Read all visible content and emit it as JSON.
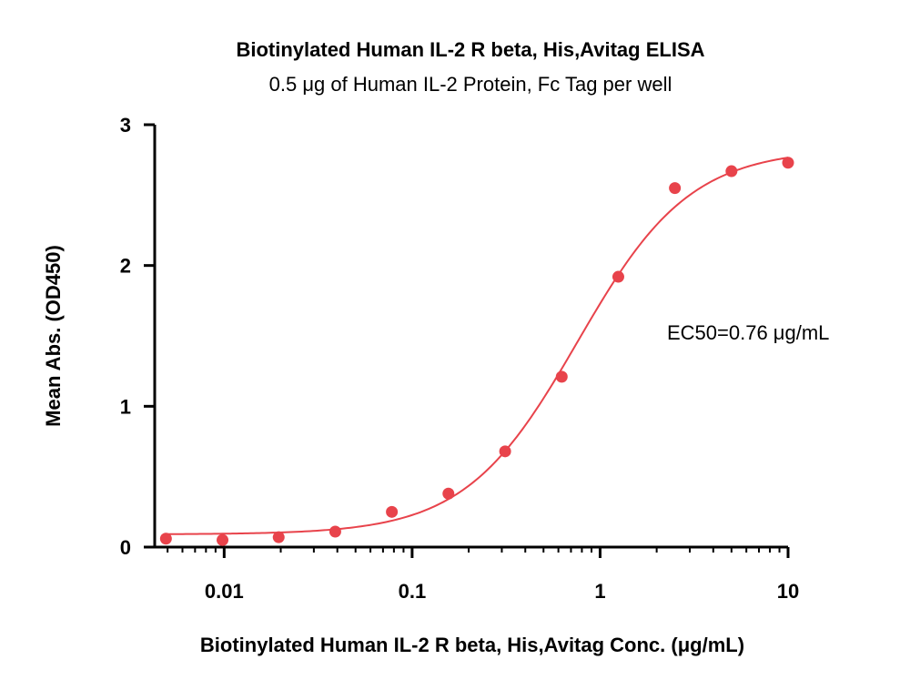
{
  "chart_data": {
    "type": "scatter",
    "title": "Biotinylated Human IL-2 R beta, His,Avitag ELISA",
    "subtitle": "0.5 μg of Human IL-2 Protein, Fc Tag per well",
    "xlabel": "Biotinylated Human IL-2 R beta, His,Avitag Conc. (μg/mL)",
    "ylabel": "Mean Abs. (OD450)",
    "x_scale": "log",
    "xlim": [
      0.00427,
      10
    ],
    "ylim": [
      0,
      3
    ],
    "x_ticks": [
      {
        "value": 0.01,
        "label": "0.01"
      },
      {
        "value": 0.1,
        "label": "0.1"
      },
      {
        "value": 1,
        "label": "1"
      },
      {
        "value": 10,
        "label": "10"
      }
    ],
    "y_ticks": [
      {
        "value": 0,
        "label": "0"
      },
      {
        "value": 1,
        "label": "1"
      },
      {
        "value": 2,
        "label": "2"
      },
      {
        "value": 3,
        "label": "3"
      }
    ],
    "annotation": "EC50=0.76 μg/mL",
    "color": "#e8434b",
    "series": [
      {
        "points": [
          {
            "x": 0.0049,
            "y": 0.06
          },
          {
            "x": 0.0098,
            "y": 0.05
          },
          {
            "x": 0.0195,
            "y": 0.07
          },
          {
            "x": 0.039,
            "y": 0.11
          },
          {
            "x": 0.078,
            "y": 0.25
          },
          {
            "x": 0.156,
            "y": 0.38
          },
          {
            "x": 0.3125,
            "y": 0.68
          },
          {
            "x": 0.625,
            "y": 1.21
          },
          {
            "x": 1.25,
            "y": 1.92
          },
          {
            "x": 2.5,
            "y": 2.55
          },
          {
            "x": 5,
            "y": 2.67
          },
          {
            "x": 10,
            "y": 2.73
          }
        ],
        "fit": {
          "bottom": 0.09,
          "top": 2.83,
          "ec50": 0.76,
          "hill": 1.45
        }
      }
    ]
  }
}
